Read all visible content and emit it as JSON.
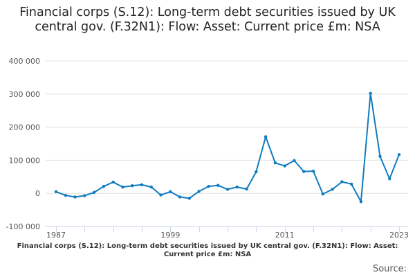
{
  "chart_data": {
    "type": "line",
    "title": "Financial corps (S.12): Long-term debt securities issued by UK central gov. (F.32N1): Flow: Asset: Current price £m: NSA",
    "xlabel": "",
    "ylabel": "",
    "ylim": [
      -100000,
      400000
    ],
    "yticks": [
      -100000,
      0,
      100000,
      200000,
      300000,
      400000
    ],
    "ytick_labels": [
      "-100 000",
      "0",
      "100 000",
      "200 000",
      "300 000",
      "400 000"
    ],
    "xtick_labels": [
      "1987",
      "1999",
      "2011",
      "2023"
    ],
    "grid": true,
    "color": "#0f7bc1",
    "x": [
      1987,
      1988,
      1989,
      1990,
      1991,
      1992,
      1993,
      1994,
      1995,
      1996,
      1997,
      1998,
      1999,
      2000,
      2001,
      2002,
      2003,
      2004,
      2005,
      2006,
      2007,
      2008,
      2009,
      2010,
      2011,
      2012,
      2013,
      2014,
      2015,
      2016,
      2017,
      2018,
      2019,
      2020,
      2021,
      2022,
      2023
    ],
    "values": [
      5000,
      -6000,
      -11000,
      -7000,
      3000,
      21000,
      34000,
      19000,
      23000,
      26000,
      19000,
      -5000,
      5000,
      -11000,
      -15000,
      6000,
      21000,
      24000,
      12000,
      19000,
      13000,
      65000,
      171000,
      92000,
      83000,
      99000,
      66000,
      67000,
      -2000,
      12000,
      35000,
      28000,
      -25000,
      302000,
      112000,
      44000,
      117000
    ]
  },
  "footer": {
    "series_title": "Financial corps (S.12): Long-term debt securities issued by UK central gov. (F.32N1): Flow: Asset: Current price £m: NSA",
    "source_label": "Source:"
  }
}
